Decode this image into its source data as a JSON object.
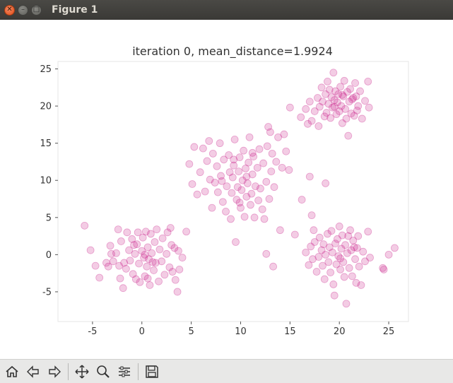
{
  "window": {
    "title": "Figure 1"
  },
  "toolbar": {
    "buttons": [
      {
        "name": "home-icon"
      },
      {
        "name": "back-arrow-icon"
      },
      {
        "name": "forward-arrow-icon"
      },
      {
        "name": "pan-move-icon"
      },
      {
        "name": "zoom-magnifier-icon"
      },
      {
        "name": "subplots-config-icon"
      },
      {
        "name": "save-floppy-icon"
      }
    ]
  },
  "colors": {
    "point": "#c71585",
    "titlebar": "#3c3b37",
    "toolbar": "#e8e8e7"
  },
  "chart_data": {
    "type": "scatter",
    "title": "iteration 0, mean_distance=1.9924",
    "xlabel": "",
    "ylabel": "",
    "xlim": [
      -8.5,
      27
    ],
    "ylim": [
      -9,
      26
    ],
    "xticks": [
      -5,
      0,
      5,
      10,
      15,
      20,
      25
    ],
    "yticks": [
      -5,
      0,
      5,
      10,
      15,
      20,
      25
    ],
    "xtick_labels": [
      "-5",
      "0",
      "5",
      "10",
      "15",
      "20",
      "25"
    ],
    "ytick_labels": [
      "-5",
      "0",
      "5",
      "10",
      "15",
      "20",
      "25"
    ],
    "grid": false,
    "series": [
      {
        "points": [
          [
            -5.8,
            3.9
          ],
          [
            -5.2,
            0.6
          ],
          [
            -4.7,
            -1.5
          ],
          [
            -4.3,
            -3.1
          ],
          [
            -3.6,
            -1.1
          ],
          [
            -3.4,
            -1.6
          ],
          [
            -3.2,
            1.2
          ],
          [
            -2.9,
            -0.9
          ],
          [
            -2.6,
            0.2
          ],
          [
            -2.4,
            3.4
          ],
          [
            -2.3,
            -1.5
          ],
          [
            -2.2,
            -3.2
          ],
          [
            -2.1,
            1.8
          ],
          [
            -1.9,
            -4.5
          ],
          [
            -1.6,
            -1.9
          ],
          [
            -1.5,
            3.0
          ],
          [
            -1.3,
            0.6
          ],
          [
            -1.2,
            -0.8
          ],
          [
            -1.0,
            2.1
          ],
          [
            -0.9,
            -2.6
          ],
          [
            -0.7,
            0.1
          ],
          [
            -0.6,
            -3.3
          ],
          [
            -0.5,
            1.4
          ],
          [
            -0.4,
            3.0
          ],
          [
            -0.3,
            -1.2
          ],
          [
            -0.2,
            -3.7
          ],
          [
            0.0,
            0.5
          ],
          [
            0.1,
            2.3
          ],
          [
            0.2,
            -0.4
          ],
          [
            0.3,
            -2.9
          ],
          [
            0.4,
            3.1
          ],
          [
            0.5,
            -1.6
          ],
          [
            0.6,
            1.0
          ],
          [
            0.7,
            -0.6
          ],
          [
            0.8,
            -4.1
          ],
          [
            0.9,
            2.8
          ],
          [
            1.0,
            0.2
          ],
          [
            1.2,
            -2.1
          ],
          [
            1.3,
            1.7
          ],
          [
            1.4,
            -1.1
          ],
          [
            1.5,
            3.4
          ],
          [
            1.7,
            -3.6
          ],
          [
            1.8,
            0.7
          ],
          [
            2.0,
            -0.9
          ],
          [
            2.1,
            2.2
          ],
          [
            2.3,
            -2.7
          ],
          [
            2.5,
            0.1
          ],
          [
            2.6,
            3.0
          ],
          [
            2.8,
            -1.7
          ],
          [
            3.0,
            1.3
          ],
          [
            3.1,
            -2.3
          ],
          [
            3.3,
            0.9
          ],
          [
            3.4,
            -3.4
          ],
          [
            3.6,
            -5.0
          ],
          [
            3.8,
            -2.0
          ],
          [
            4.1,
            -0.4
          ],
          [
            -0.8,
            1.3
          ],
          [
            0.3,
            0.0
          ],
          [
            1.1,
            -1.0
          ],
          [
            -1.8,
            -1.1
          ],
          [
            2.9,
            3.6
          ],
          [
            -3.1,
            0.1
          ],
          [
            0.6,
            -3.2
          ],
          [
            3.7,
            0.5
          ],
          [
            4.5,
            3.1
          ],
          [
            4.8,
            12.2
          ],
          [
            5.1,
            9.5
          ],
          [
            5.3,
            14.5
          ],
          [
            5.6,
            8.1
          ],
          [
            5.9,
            11.1
          ],
          [
            6.2,
            14.3
          ],
          [
            6.4,
            8.5
          ],
          [
            6.6,
            12.6
          ],
          [
            6.8,
            15.3
          ],
          [
            6.9,
            10.1
          ],
          [
            7.1,
            6.3
          ],
          [
            7.2,
            13.6
          ],
          [
            7.4,
            9.7
          ],
          [
            7.6,
            11.9
          ],
          [
            7.7,
            8.4
          ],
          [
            7.9,
            15.0
          ],
          [
            8.0,
            10.6
          ],
          [
            8.2,
            7.1
          ],
          [
            8.3,
            12.8
          ],
          [
            8.5,
            5.8
          ],
          [
            8.6,
            9.2
          ],
          [
            8.8,
            13.4
          ],
          [
            8.9,
            11.1
          ],
          [
            9.0,
            4.8
          ],
          [
            9.1,
            8.3
          ],
          [
            9.2,
            10.4
          ],
          [
            9.3,
            12.0
          ],
          [
            9.4,
            15.5
          ],
          [
            9.5,
            1.7
          ],
          [
            9.6,
            7.4
          ],
          [
            9.7,
            9.1
          ],
          [
            9.8,
            11.2
          ],
          [
            9.9,
            13.1
          ],
          [
            10.0,
            6.3
          ],
          [
            10.1,
            8.7
          ],
          [
            10.2,
            10.0
          ],
          [
            10.3,
            14.0
          ],
          [
            10.4,
            5.1
          ],
          [
            10.5,
            11.6
          ],
          [
            10.6,
            7.8
          ],
          [
            10.7,
            9.6
          ],
          [
            10.8,
            12.4
          ],
          [
            10.9,
            15.8
          ],
          [
            11.0,
            6.7
          ],
          [
            11.1,
            8.2
          ],
          [
            11.2,
            10.8
          ],
          [
            11.3,
            13.2
          ],
          [
            11.4,
            5.0
          ],
          [
            11.5,
            9.2
          ],
          [
            11.7,
            11.7
          ],
          [
            11.8,
            7.3
          ],
          [
            11.9,
            14.2
          ],
          [
            12.0,
            8.9
          ],
          [
            12.2,
            6.1
          ],
          [
            12.3,
            12.3
          ],
          [
            12.4,
            4.8
          ],
          [
            12.6,
            9.8
          ],
          [
            12.7,
            14.6
          ],
          [
            12.9,
            7.5
          ],
          [
            13.0,
            16.5
          ],
          [
            13.1,
            11.2
          ],
          [
            13.2,
            13.6
          ],
          [
            13.3,
            -1.6
          ],
          [
            13.4,
            9.1
          ],
          [
            13.6,
            12.5
          ],
          [
            13.8,
            15.8
          ],
          [
            14.0,
            3.3
          ],
          [
            14.2,
            11.7
          ],
          [
            14.4,
            16.2
          ],
          [
            14.6,
            13.9
          ],
          [
            14.9,
            11.4
          ],
          [
            9.3,
            12.8
          ],
          [
            8.1,
            9.9
          ],
          [
            10.6,
            10.5
          ],
          [
            11.2,
            13.7
          ],
          [
            9.9,
            7.0
          ],
          [
            12.8,
            17.2
          ],
          [
            12.6,
            0.1
          ],
          [
            15.0,
            19.8
          ],
          [
            16.1,
            18.5
          ],
          [
            16.6,
            19.6
          ],
          [
            16.8,
            17.6
          ],
          [
            17.0,
            20.6
          ],
          [
            17.2,
            18.0
          ],
          [
            17.5,
            19.3
          ],
          [
            17.8,
            21.1
          ],
          [
            18.0,
            19.9
          ],
          [
            18.2,
            22.5
          ],
          [
            18.3,
            20.6
          ],
          [
            18.5,
            18.6
          ],
          [
            18.6,
            21.6
          ],
          [
            18.7,
            19.1
          ],
          [
            18.8,
            23.3
          ],
          [
            18.9,
            20.3
          ],
          [
            19.0,
            22.2
          ],
          [
            19.1,
            18.4
          ],
          [
            19.2,
            21.2
          ],
          [
            19.3,
            19.8
          ],
          [
            19.4,
            24.5
          ],
          [
            19.5,
            20.8
          ],
          [
            19.6,
            22.0
          ],
          [
            19.7,
            18.9
          ],
          [
            19.8,
            20.5
          ],
          [
            19.9,
            21.6
          ],
          [
            20.0,
            19.3
          ],
          [
            20.1,
            22.6
          ],
          [
            20.2,
            20.0
          ],
          [
            20.3,
            17.7
          ],
          [
            20.4,
            21.3
          ],
          [
            20.5,
            23.4
          ],
          [
            20.6,
            19.6
          ],
          [
            20.7,
            18.3
          ],
          [
            20.8,
            21.9
          ],
          [
            20.9,
            16.0
          ],
          [
            21.0,
            20.6
          ],
          [
            21.1,
            22.3
          ],
          [
            21.2,
            19.0
          ],
          [
            21.3,
            20.9
          ],
          [
            21.5,
            18.7
          ],
          [
            21.6,
            23.1
          ],
          [
            21.7,
            21.3
          ],
          [
            21.8,
            19.4
          ],
          [
            21.9,
            20.0
          ],
          [
            22.1,
            22.0
          ],
          [
            22.3,
            18.3
          ],
          [
            22.6,
            20.7
          ],
          [
            22.9,
            23.3
          ],
          [
            23.0,
            19.8
          ],
          [
            17.9,
            17.3
          ],
          [
            19.5,
            19.9
          ],
          [
            20.3,
            21.5
          ],
          [
            21.4,
            21.1
          ],
          [
            17.0,
            10.5
          ],
          [
            16.2,
            7.4
          ],
          [
            18.6,
            9.6
          ],
          [
            15.5,
            2.7
          ],
          [
            16.6,
            0.3
          ],
          [
            16.9,
            -1.4
          ],
          [
            17.1,
            1.1
          ],
          [
            17.2,
            5.3
          ],
          [
            17.3,
            -0.6
          ],
          [
            17.4,
            3.3
          ],
          [
            17.5,
            1.7
          ],
          [
            17.7,
            -2.3
          ],
          [
            17.9,
            -0.3
          ],
          [
            18.0,
            2.3
          ],
          [
            18.2,
            0.6
          ],
          [
            18.3,
            -1.5
          ],
          [
            18.4,
            1.4
          ],
          [
            18.5,
            -3.3
          ],
          [
            18.6,
            0.0
          ],
          [
            18.8,
            2.8
          ],
          [
            18.9,
            -1.0
          ],
          [
            19.0,
            1.0
          ],
          [
            19.1,
            -2.4
          ],
          [
            19.2,
            3.2
          ],
          [
            19.3,
            0.3
          ],
          [
            19.4,
            -4.0
          ],
          [
            19.5,
            -5.5
          ],
          [
            19.6,
            1.5
          ],
          [
            19.7,
            -1.3
          ],
          [
            19.8,
            2.1
          ],
          [
            19.9,
            -0.2
          ],
          [
            20.0,
            3.8
          ],
          [
            20.1,
            -2.0
          ],
          [
            20.2,
            0.8
          ],
          [
            20.3,
            2.6
          ],
          [
            20.4,
            -1.0
          ],
          [
            20.5,
            -3.0
          ],
          [
            20.6,
            1.3
          ],
          [
            20.7,
            -6.6
          ],
          [
            20.8,
            0.2
          ],
          [
            20.9,
            2.5
          ],
          [
            21.0,
            -1.8
          ],
          [
            21.1,
            3.3
          ],
          [
            21.2,
            0.6
          ],
          [
            21.3,
            -2.9
          ],
          [
            21.4,
            1.9
          ],
          [
            21.6,
            -0.6
          ],
          [
            21.7,
            -3.8
          ],
          [
            21.8,
            0.9
          ],
          [
            21.9,
            2.5
          ],
          [
            22.0,
            -1.6
          ],
          [
            22.2,
            -4.1
          ],
          [
            22.4,
            0.4
          ],
          [
            22.6,
            -0.9
          ],
          [
            22.9,
            3.1
          ],
          [
            23.1,
            -0.4
          ],
          [
            24.4,
            -1.8
          ],
          [
            24.5,
            -2.0
          ],
          [
            25.0,
            0.0
          ],
          [
            25.6,
            0.9
          ],
          [
            20.1,
            -0.5
          ],
          [
            21.5,
            1.0
          ]
        ]
      }
    ]
  }
}
